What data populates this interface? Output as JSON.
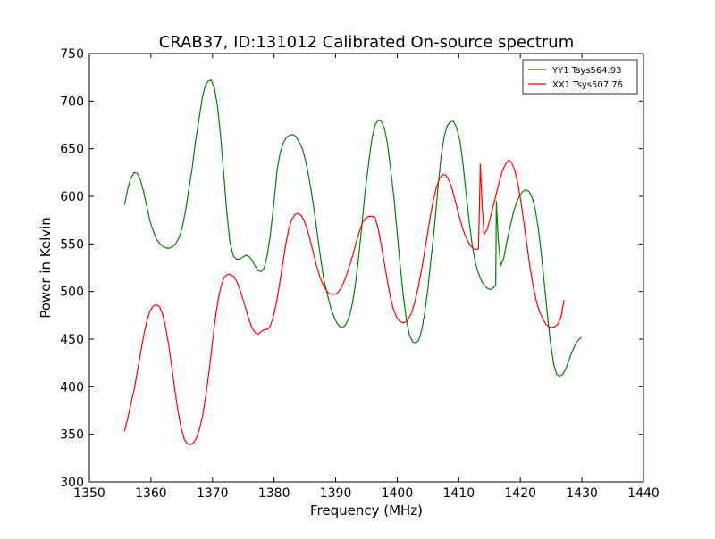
{
  "chart_data": {
    "type": "line",
    "title": "CRAB37, ID:131012 Calibrated On-source spectrum",
    "xlabel": "Frequency (MHz)",
    "ylabel": "Power in Kelvin",
    "xlim": [
      1350,
      1440
    ],
    "ylim": [
      300,
      750
    ],
    "xticks": [
      1350,
      1360,
      1370,
      1380,
      1390,
      1400,
      1410,
      1420,
      1430,
      1440
    ],
    "yticks": [
      300,
      350,
      400,
      450,
      500,
      550,
      600,
      650,
      700,
      750
    ],
    "grid": false,
    "legend_position": "top-right",
    "series": [
      {
        "name": "YY1 Tsys564.93",
        "color": "#008000",
        "points": [
          [
            1355.7,
            591
          ],
          [
            1356.2,
            607
          ],
          [
            1356.7,
            619
          ],
          [
            1357.3,
            625
          ],
          [
            1357.8,
            624
          ],
          [
            1358.3,
            617
          ],
          [
            1358.8,
            605
          ],
          [
            1359.3,
            590
          ],
          [
            1359.8,
            575
          ],
          [
            1360.4,
            563
          ],
          [
            1360.9,
            555
          ],
          [
            1361.5,
            550
          ],
          [
            1362.0,
            547
          ],
          [
            1362.5,
            545.5
          ],
          [
            1363.0,
            545.5
          ],
          [
            1363.5,
            547
          ],
          [
            1364.0,
            550
          ],
          [
            1364.6,
            557
          ],
          [
            1365.1,
            568
          ],
          [
            1365.6,
            584
          ],
          [
            1366.1,
            605
          ],
          [
            1366.7,
            630
          ],
          [
            1367.2,
            656
          ],
          [
            1367.8,
            681
          ],
          [
            1368.3,
            702
          ],
          [
            1368.8,
            716
          ],
          [
            1369.3,
            721
          ],
          [
            1369.8,
            722
          ],
          [
            1370.3,
            714
          ],
          [
            1370.8,
            695
          ],
          [
            1371.3,
            665
          ],
          [
            1371.8,
            625
          ],
          [
            1372.3,
            585
          ],
          [
            1372.8,
            553
          ],
          [
            1373.4,
            537
          ],
          [
            1373.9,
            534
          ],
          [
            1374.4,
            534
          ],
          [
            1374.9,
            536
          ],
          [
            1375.4,
            538
          ],
          [
            1375.9,
            537
          ],
          [
            1376.4,
            533
          ],
          [
            1376.9,
            527
          ],
          [
            1377.4,
            522
          ],
          [
            1377.9,
            521
          ],
          [
            1378.4,
            525
          ],
          [
            1378.9,
            538
          ],
          [
            1379.4,
            560
          ],
          [
            1380.0,
            595
          ],
          [
            1380.5,
            628
          ],
          [
            1381.0,
            646
          ],
          [
            1381.5,
            656
          ],
          [
            1382.0,
            662
          ],
          [
            1382.5,
            664
          ],
          [
            1383.0,
            665
          ],
          [
            1383.5,
            663
          ],
          [
            1384.0,
            658
          ],
          [
            1384.6,
            650
          ],
          [
            1385.1,
            638
          ],
          [
            1385.6,
            622
          ],
          [
            1386.1,
            603
          ],
          [
            1386.6,
            581
          ],
          [
            1387.1,
            557
          ],
          [
            1387.6,
            533
          ],
          [
            1388.1,
            512
          ],
          [
            1388.7,
            496
          ],
          [
            1389.2,
            483
          ],
          [
            1389.7,
            474
          ],
          [
            1390.2,
            467
          ],
          [
            1390.7,
            463
          ],
          [
            1391.2,
            462
          ],
          [
            1391.7,
            466
          ],
          [
            1392.3,
            475
          ],
          [
            1392.8,
            490
          ],
          [
            1393.3,
            512
          ],
          [
            1393.8,
            540
          ],
          [
            1394.3,
            572
          ],
          [
            1394.8,
            606
          ],
          [
            1395.4,
            637
          ],
          [
            1395.9,
            661
          ],
          [
            1396.4,
            675
          ],
          [
            1396.9,
            680
          ],
          [
            1397.4,
            679
          ],
          [
            1397.9,
            672
          ],
          [
            1398.4,
            656
          ],
          [
            1398.9,
            630
          ],
          [
            1399.5,
            597
          ],
          [
            1400.0,
            561
          ],
          [
            1400.5,
            526
          ],
          [
            1401.0,
            495
          ],
          [
            1401.5,
            470
          ],
          [
            1402.0,
            454
          ],
          [
            1402.5,
            447
          ],
          [
            1403.0,
            446
          ],
          [
            1403.5,
            449
          ],
          [
            1404.0,
            460
          ],
          [
            1404.5,
            479
          ],
          [
            1405.0,
            504
          ],
          [
            1405.5,
            535
          ],
          [
            1406.1,
            571
          ],
          [
            1406.6,
            608
          ],
          [
            1407.1,
            640
          ],
          [
            1407.6,
            662
          ],
          [
            1408.1,
            674
          ],
          [
            1408.6,
            678
          ],
          [
            1409.1,
            679
          ],
          [
            1409.6,
            673
          ],
          [
            1410.2,
            658
          ],
          [
            1410.7,
            633
          ],
          [
            1411.2,
            602
          ],
          [
            1411.7,
            573
          ],
          [
            1412.2,
            548
          ],
          [
            1412.7,
            530
          ],
          [
            1413.2,
            519
          ],
          [
            1413.7,
            511
          ],
          [
            1414.2,
            506
          ],
          [
            1414.7,
            503
          ],
          [
            1415.2,
            502
          ],
          [
            1415.6,
            504
          ],
          [
            1416.0,
            506
          ],
          [
            1416.1,
            595
          ],
          [
            1416.4,
            555
          ],
          [
            1416.8,
            527
          ],
          [
            1417.3,
            535
          ],
          [
            1417.8,
            552
          ],
          [
            1418.4,
            570
          ],
          [
            1418.9,
            584
          ],
          [
            1419.4,
            594
          ],
          [
            1419.9,
            601
          ],
          [
            1420.4,
            605
          ],
          [
            1420.9,
            607
          ],
          [
            1421.4,
            605
          ],
          [
            1421.9,
            599
          ],
          [
            1422.4,
            587
          ],
          [
            1422.9,
            567
          ],
          [
            1423.4,
            540
          ],
          [
            1423.9,
            508
          ],
          [
            1424.4,
            475
          ],
          [
            1424.9,
            446
          ],
          [
            1425.4,
            424
          ],
          [
            1425.9,
            413
          ],
          [
            1426.4,
            411
          ],
          [
            1426.9,
            413
          ],
          [
            1427.4,
            419
          ],
          [
            1427.9,
            428
          ],
          [
            1428.4,
            437
          ],
          [
            1428.9,
            444
          ],
          [
            1429.4,
            449
          ],
          [
            1429.9,
            452
          ]
        ]
      },
      {
        "name": "XX1 Tsys507.76",
        "color": "#ff0000",
        "points": [
          [
            1355.7,
            353
          ],
          [
            1356.2,
            366
          ],
          [
            1356.7,
            381
          ],
          [
            1357.3,
            398
          ],
          [
            1357.8,
            416
          ],
          [
            1358.3,
            435
          ],
          [
            1358.8,
            453
          ],
          [
            1359.3,
            468
          ],
          [
            1359.8,
            479
          ],
          [
            1360.4,
            485
          ],
          [
            1360.9,
            486
          ],
          [
            1361.4,
            484
          ],
          [
            1361.9,
            476
          ],
          [
            1362.4,
            462
          ],
          [
            1362.9,
            443
          ],
          [
            1363.4,
            420
          ],
          [
            1363.9,
            396
          ],
          [
            1364.4,
            374
          ],
          [
            1364.9,
            357
          ],
          [
            1365.4,
            345
          ],
          [
            1365.9,
            340
          ],
          [
            1366.4,
            339
          ],
          [
            1366.9,
            341
          ],
          [
            1367.4,
            346
          ],
          [
            1367.9,
            356
          ],
          [
            1368.4,
            370
          ],
          [
            1368.9,
            390
          ],
          [
            1369.4,
            414
          ],
          [
            1369.9,
            441
          ],
          [
            1370.4,
            469
          ],
          [
            1370.9,
            491
          ],
          [
            1371.4,
            506
          ],
          [
            1371.9,
            515
          ],
          [
            1372.4,
            518
          ],
          [
            1372.9,
            518
          ],
          [
            1373.4,
            516
          ],
          [
            1373.9,
            511
          ],
          [
            1374.4,
            503
          ],
          [
            1374.9,
            493
          ],
          [
            1375.4,
            482
          ],
          [
            1375.9,
            471
          ],
          [
            1376.4,
            462
          ],
          [
            1376.9,
            457
          ],
          [
            1377.4,
            455
          ],
          [
            1377.9,
            458
          ],
          [
            1378.4,
            460
          ],
          [
            1378.9,
            460
          ],
          [
            1379.4,
            464
          ],
          [
            1379.9,
            474
          ],
          [
            1380.4,
            489
          ],
          [
            1380.9,
            508
          ],
          [
            1381.4,
            529
          ],
          [
            1381.9,
            550
          ],
          [
            1382.4,
            566
          ],
          [
            1382.9,
            576
          ],
          [
            1383.4,
            581
          ],
          [
            1383.9,
            582
          ],
          [
            1384.4,
            580
          ],
          [
            1384.9,
            574
          ],
          [
            1385.4,
            565
          ],
          [
            1385.9,
            553
          ],
          [
            1386.4,
            540
          ],
          [
            1386.9,
            527
          ],
          [
            1387.4,
            516
          ],
          [
            1387.9,
            508
          ],
          [
            1388.4,
            502
          ],
          [
            1388.9,
            498
          ],
          [
            1389.4,
            497
          ],
          [
            1389.9,
            497
          ],
          [
            1390.4,
            499
          ],
          [
            1390.9,
            504
          ],
          [
            1391.4,
            511
          ],
          [
            1391.9,
            520
          ],
          [
            1392.4,
            530
          ],
          [
            1392.9,
            541
          ],
          [
            1393.4,
            553
          ],
          [
            1393.9,
            564
          ],
          [
            1394.4,
            573
          ],
          [
            1394.9,
            577
          ],
          [
            1395.4,
            579
          ],
          [
            1395.9,
            579
          ],
          [
            1396.4,
            578
          ],
          [
            1396.9,
            566
          ],
          [
            1397.4,
            549
          ],
          [
            1397.9,
            530
          ],
          [
            1398.4,
            511
          ],
          [
            1398.9,
            494
          ],
          [
            1399.4,
            481
          ],
          [
            1399.9,
            473
          ],
          [
            1400.4,
            469
          ],
          [
            1400.9,
            467
          ],
          [
            1401.4,
            468
          ],
          [
            1401.9,
            472
          ],
          [
            1402.4,
            479
          ],
          [
            1402.9,
            490
          ],
          [
            1403.4,
            504
          ],
          [
            1403.9,
            521
          ],
          [
            1404.4,
            540
          ],
          [
            1404.9,
            560
          ],
          [
            1405.4,
            580
          ],
          [
            1405.9,
            597
          ],
          [
            1406.4,
            610
          ],
          [
            1406.9,
            619
          ],
          [
            1407.4,
            623
          ],
          [
            1407.9,
            622
          ],
          [
            1408.4,
            617
          ],
          [
            1408.9,
            608
          ],
          [
            1409.4,
            596
          ],
          [
            1409.9,
            583
          ],
          [
            1410.4,
            571
          ],
          [
            1410.9,
            561
          ],
          [
            1411.4,
            554
          ],
          [
            1411.9,
            548
          ],
          [
            1412.4,
            545
          ],
          [
            1412.9,
            544
          ],
          [
            1413.2,
            545
          ],
          [
            1413.5,
            634
          ],
          [
            1413.8,
            590
          ],
          [
            1414.1,
            560
          ],
          [
            1414.6,
            565
          ],
          [
            1415.1,
            577
          ],
          [
            1415.6,
            590
          ],
          [
            1416.1,
            603
          ],
          [
            1416.6,
            616
          ],
          [
            1417.1,
            627
          ],
          [
            1417.6,
            634
          ],
          [
            1418.1,
            638
          ],
          [
            1418.6,
            635
          ],
          [
            1419.1,
            627
          ],
          [
            1419.6,
            613
          ],
          [
            1420.1,
            594
          ],
          [
            1420.6,
            571
          ],
          [
            1421.1,
            547
          ],
          [
            1421.6,
            524
          ],
          [
            1422.1,
            505
          ],
          [
            1422.6,
            490
          ],
          [
            1423.1,
            479
          ],
          [
            1423.6,
            472
          ],
          [
            1424.1,
            466
          ],
          [
            1424.6,
            463
          ],
          [
            1425.1,
            462
          ],
          [
            1425.6,
            463
          ],
          [
            1426.1,
            466
          ],
          [
            1426.6,
            473
          ],
          [
            1427.1,
            491
          ]
        ]
      }
    ]
  }
}
